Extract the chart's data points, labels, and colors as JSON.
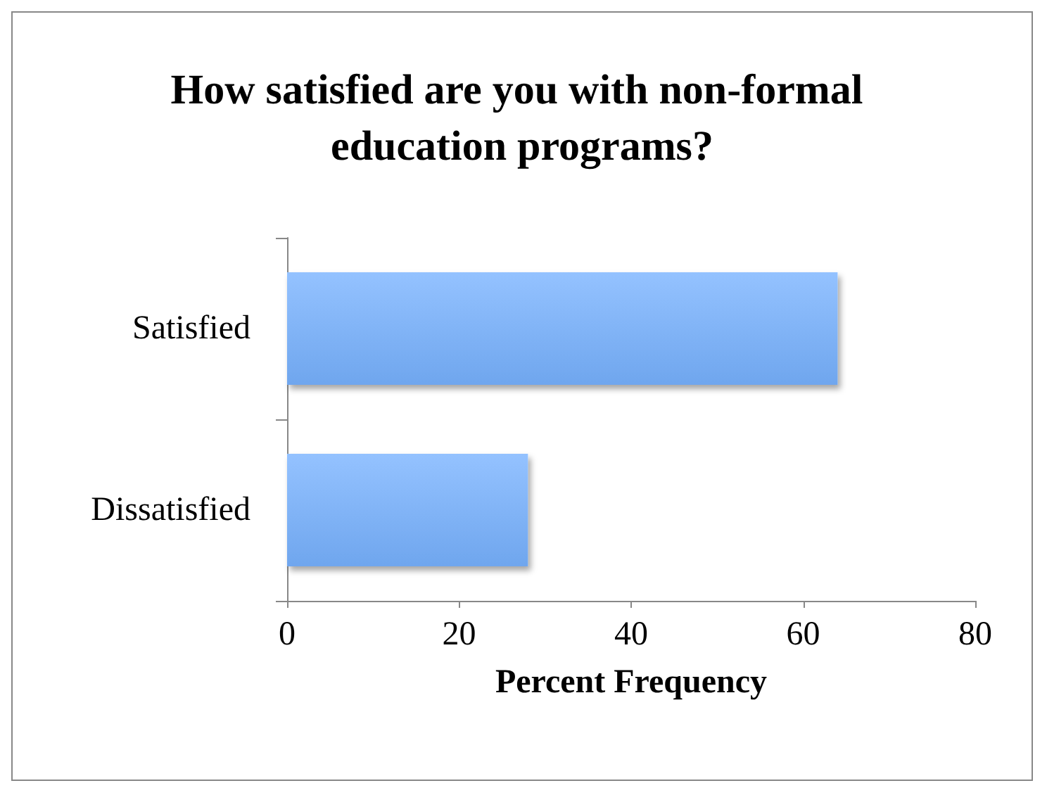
{
  "chart_data": {
    "type": "bar",
    "orientation": "horizontal",
    "title": "How satisfied are you with non-formal education programs?",
    "xlabel": "Percent Frequency",
    "categories": [
      "Satisfied",
      "Dissatisfied"
    ],
    "values": [
      64,
      28
    ],
    "color": "#6fa6ee",
    "xlim": [
      0,
      80
    ],
    "xticks": [
      0,
      20,
      40,
      60,
      80
    ],
    "grid": false
  }
}
